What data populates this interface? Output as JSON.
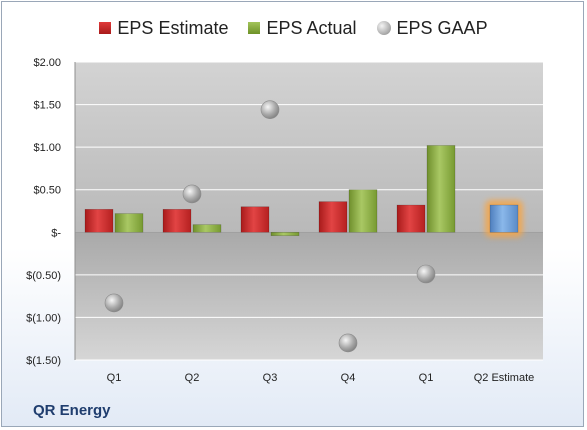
{
  "legend": {
    "estimate": "EPS Estimate",
    "actual": "EPS Actual",
    "gaap": "EPS GAAP"
  },
  "footer": {
    "company": "QR Energy"
  },
  "colors": {
    "estimate": "#c42626",
    "actual": "#86a83c",
    "gaap": "#a6a6a6",
    "estimate_projection": "#6d9fd8",
    "projection_glow": "#f5a64a"
  },
  "chart_data": {
    "type": "bar",
    "categories": [
      "Q1",
      "Q2",
      "Q3",
      "Q4",
      "Q1",
      "Q2 Estimate"
    ],
    "ylim": [
      -1.5,
      2.0
    ],
    "y_ticks": [
      2.0,
      1.5,
      1.0,
      0.5,
      0,
      -0.5,
      -1.0,
      -1.5
    ],
    "y_tick_labels": [
      "$2.00",
      "$1.50",
      "$1.00",
      "$0.50",
      "$-",
      "$(0.50)",
      "$(1.00)",
      "$(1.50)"
    ],
    "grid": true,
    "legend_position": "top",
    "series": [
      {
        "name": "EPS Estimate",
        "type": "bar",
        "values": [
          0.27,
          0.27,
          0.3,
          0.36,
          0.32,
          0.32
        ]
      },
      {
        "name": "EPS Actual",
        "type": "bar",
        "values": [
          0.22,
          0.09,
          -0.04,
          0.5,
          1.02,
          null
        ]
      },
      {
        "name": "EPS GAAP",
        "type": "scatter",
        "values": [
          -0.83,
          0.45,
          1.44,
          -1.3,
          -0.49,
          null
        ]
      }
    ]
  }
}
